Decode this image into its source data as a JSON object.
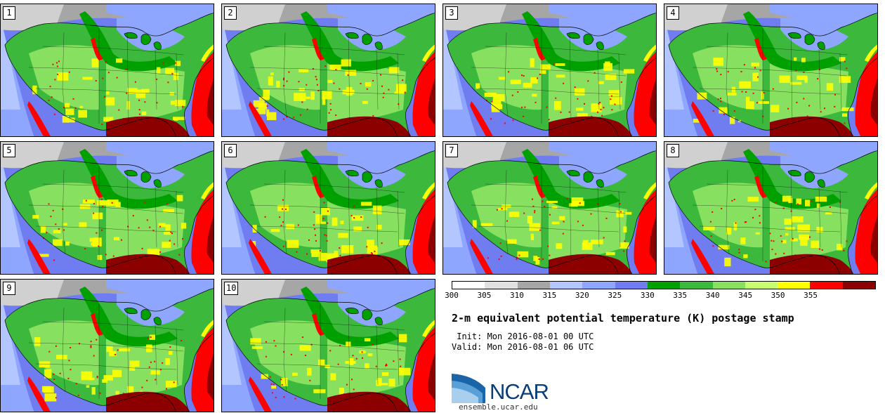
{
  "panels": [
    {
      "label": "1"
    },
    {
      "label": "2"
    },
    {
      "label": "3"
    },
    {
      "label": "4"
    },
    {
      "label": "5"
    },
    {
      "label": "6"
    },
    {
      "label": "7"
    },
    {
      "label": "8"
    },
    {
      "label": "9"
    },
    {
      "label": "10"
    }
  ],
  "colorbar": {
    "ticks": [
      "300",
      "305",
      "310",
      "315",
      "320",
      "325",
      "330",
      "335",
      "340",
      "345",
      "350",
      "355"
    ],
    "colors": [
      "#ffffff",
      "#e0e0e0",
      "#a6a6a6",
      "#b3c6ff",
      "#8fa6ff",
      "#6f7df0",
      "#00a000",
      "#3cb83c",
      "#88e060",
      "#c8ff70",
      "#ffff00",
      "#ff0000",
      "#8c0000"
    ]
  },
  "title": "2-m equivalent potential temperature (K) postage stamp",
  "init_line": " Init: Mon 2016-08-01 00 UTC",
  "valid_line": "Valid: Mon 2016-08-01 06 UTC",
  "logo": {
    "text": "NCAR",
    "url": "ensemble.ucar.edu"
  }
}
